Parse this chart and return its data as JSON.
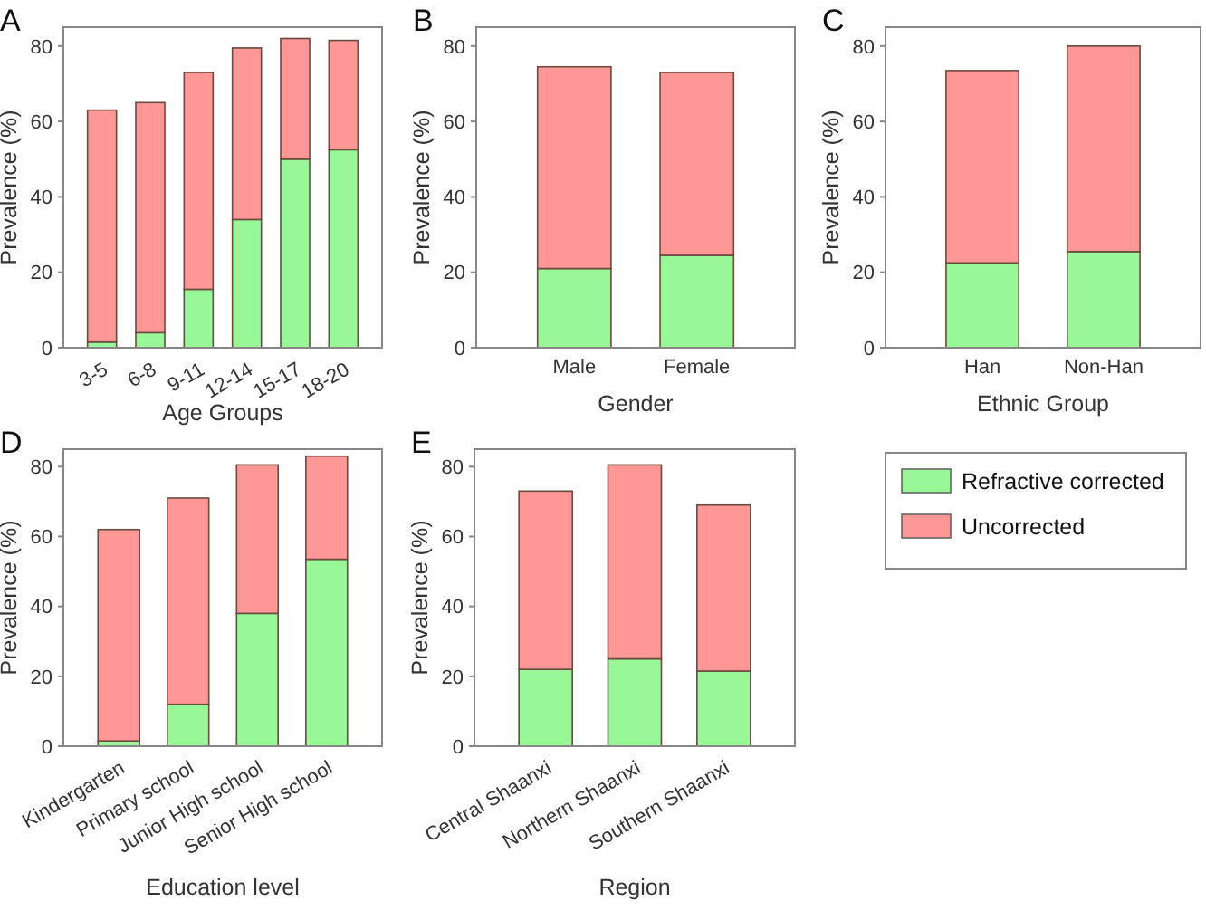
{
  "chart_data": [
    {
      "type": "bar",
      "title": "A",
      "xlabel": "Age Groups",
      "ylabel": "Prevalence (%)",
      "categories": [
        "3-5",
        "6-8",
        "9-11",
        "12-14",
        "15-17",
        "18-20"
      ],
      "stacked": true,
      "ylim": [
        0,
        85
      ],
      "yticks": [
        0,
        20,
        40,
        60,
        80
      ],
      "legend": false,
      "series": [
        {
          "color": "#98f898",
          "values": [
            1.5,
            4,
            15.5,
            34,
            50,
            52.5
          ]
        },
        {
          "color": "#ff9797",
          "values": [
            61.5,
            61,
            57.5,
            45.5,
            32,
            29
          ]
        }
      ]
    },
    {
      "type": "bar",
      "title": "B",
      "xlabel": "Gender",
      "ylabel": "Prevalence (%)",
      "categories": [
        "Male",
        "Female"
      ],
      "stacked": true,
      "ylim": [
        0,
        85
      ],
      "yticks": [
        0,
        20,
        40,
        60,
        80
      ],
      "legend": false,
      "series": [
        {
          "color": "#98f898",
          "values": [
            21,
            24.5
          ]
        },
        {
          "color": "#ff9797",
          "values": [
            53.5,
            48.5
          ]
        }
      ]
    },
    {
      "type": "bar",
      "title": "C",
      "xlabel": "Ethnic Group",
      "ylabel": "Prevalence (%)",
      "categories": [
        "Han",
        "Non-Han"
      ],
      "stacked": true,
      "ylim": [
        0,
        85
      ],
      "yticks": [
        0,
        20,
        40,
        60,
        80
      ],
      "legend": false,
      "series": [
        {
          "color": "#98f898",
          "values": [
            22.5,
            25.5
          ]
        },
        {
          "color": "#ff9797",
          "values": [
            51,
            54.5
          ]
        }
      ]
    },
    {
      "type": "bar",
      "title": "D",
      "xlabel": "Education level",
      "ylabel": "Prevalence (%)",
      "categories": [
        "Kindergarten",
        "Primary school",
        "Junior High school",
        "Senior High school"
      ],
      "stacked": true,
      "ylim": [
        0,
        85
      ],
      "yticks": [
        0,
        20,
        40,
        60,
        80
      ],
      "legend": false,
      "series": [
        {
          "color": "#98f898",
          "values": [
            1.5,
            12,
            38,
            53.5
          ]
        },
        {
          "color": "#ff9797",
          "values": [
            60.5,
            59,
            42.5,
            29.5
          ]
        }
      ]
    },
    {
      "type": "bar",
      "title": "E",
      "xlabel": "Region",
      "ylabel": "Prevalence (%)",
      "categories": [
        "Central Shaanxi",
        "Northern Shaanxi",
        "Southern Shaanxi"
      ],
      "stacked": true,
      "ylim": [
        0,
        85
      ],
      "yticks": [
        0,
        20,
        40,
        60,
        80
      ],
      "legend": "right",
      "series": [
        {
          "name": "Refractive corrected",
          "color": "#98f898",
          "values": [
            22,
            25,
            21.5
          ]
        },
        {
          "name": "Uncorrected",
          "color": "#ff9797",
          "values": [
            51,
            55.5,
            47.5
          ]
        }
      ]
    }
  ]
}
